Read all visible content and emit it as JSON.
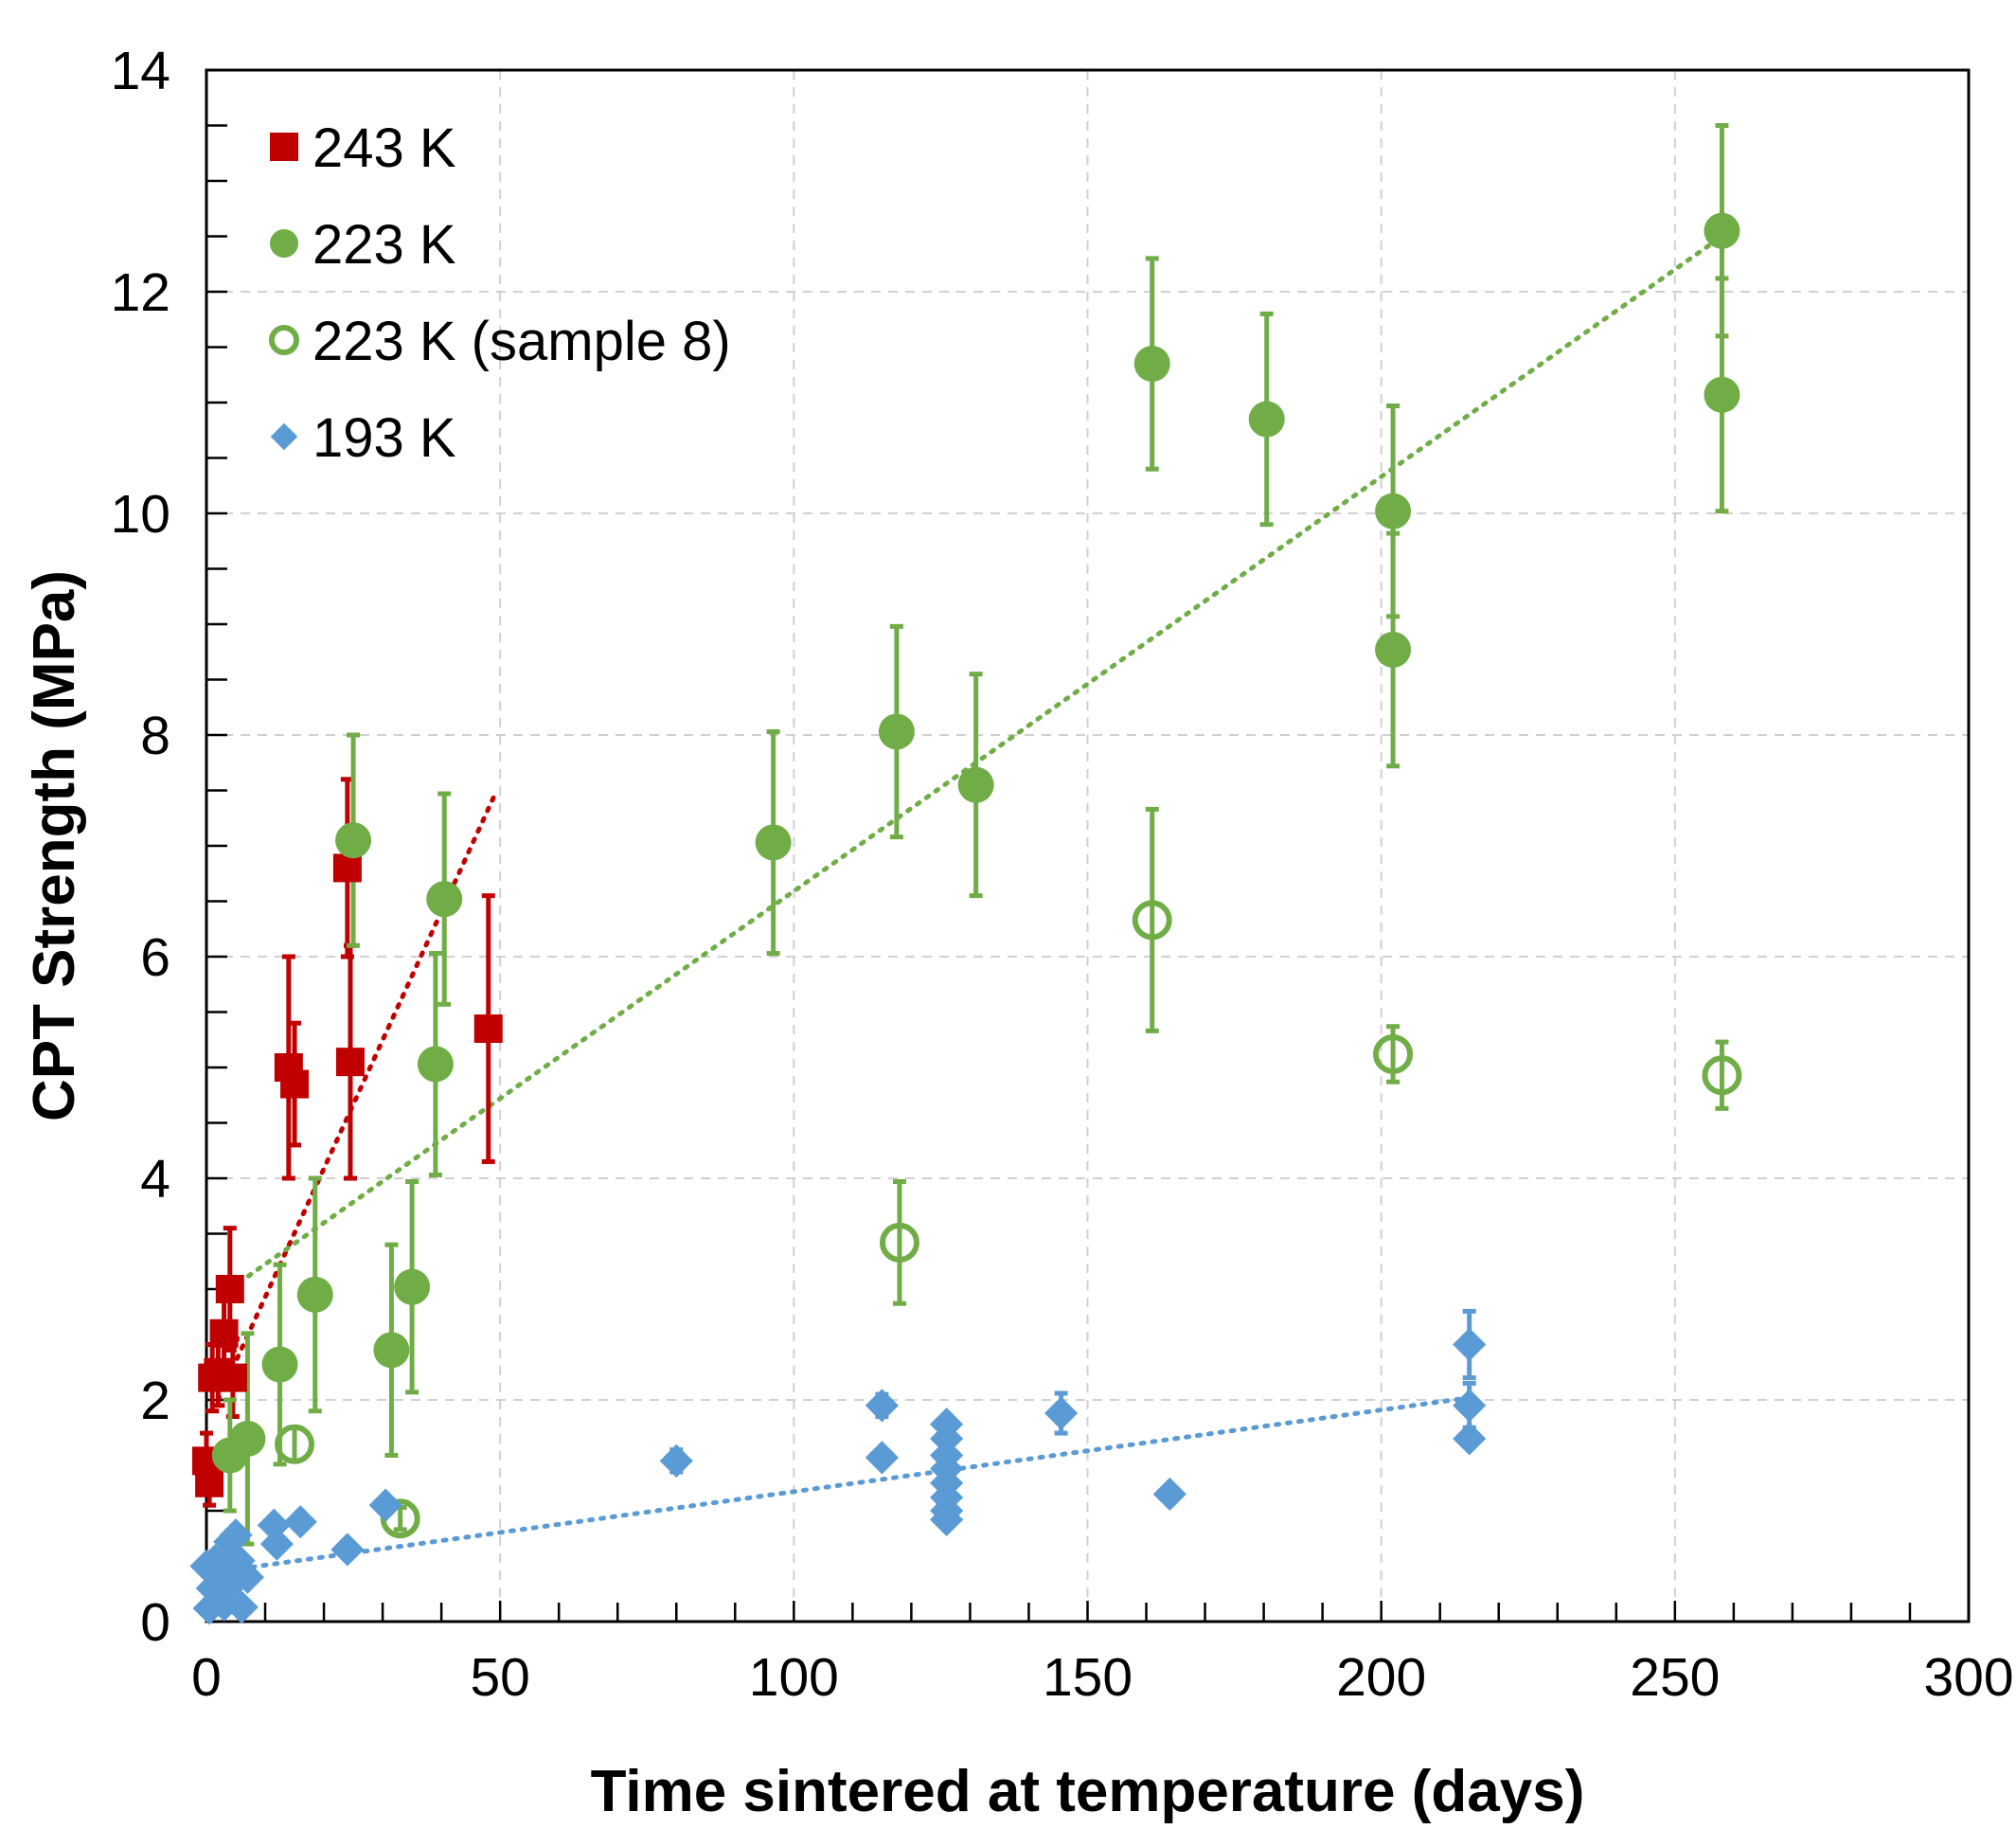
{
  "chart_data": {
    "type": "scatter",
    "xlabel": "Time sintered at temperature (days)",
    "ylabel": "CPT Strength (MPa)",
    "xlim": [
      0,
      300
    ],
    "ylim": [
      0,
      14
    ],
    "x_ticks": [
      "0",
      "50",
      "100",
      "150",
      "200",
      "250",
      "300"
    ],
    "y_ticks": [
      "0",
      "2",
      "4",
      "6",
      "8",
      "10",
      "12",
      "14"
    ],
    "grid": "dashed",
    "legend_position": "top-left",
    "series": [
      {
        "name": "243 K",
        "color": "#C00000",
        "marker": "square",
        "trendline": {
          "style": "dotted",
          "from": [
            2,
            2.0
          ],
          "to": [
            49,
            7.45
          ]
        },
        "points": [
          {
            "x": 0,
            "y": 1.45,
            "err": 0.25
          },
          {
            "x": 0.5,
            "y": 1.25,
            "err": 0.2
          },
          {
            "x": 1,
            "y": 2.2,
            "err": 0.3
          },
          {
            "x": 2,
            "y": 2.25,
            "err": 0.3
          },
          {
            "x": 3,
            "y": 2.6,
            "err": 0.35
          },
          {
            "x": 4,
            "y": 3.0,
            "err": 0.55
          },
          {
            "x": 4.5,
            "y": 2.2,
            "err": 0.35
          },
          {
            "x": 14,
            "y": 5.0,
            "err": 1.0
          },
          {
            "x": 15,
            "y": 4.85,
            "err": 0.55
          },
          {
            "x": 24,
            "y": 6.8,
            "err": 0.8
          },
          {
            "x": 24.5,
            "y": 5.05,
            "err": 1.05
          },
          {
            "x": 48,
            "y": 5.35,
            "err": 1.2
          }
        ]
      },
      {
        "name": "223 K",
        "color": "#70AD47",
        "marker": "circle",
        "trendline": {
          "style": "dotted",
          "from": [
            4,
            3.0
          ],
          "to": [
            258,
            12.5
          ]
        },
        "points": [
          {
            "x": 4,
            "y": 1.5,
            "err": 0.5
          },
          {
            "x": 7,
            "y": 1.65,
            "err": 0.95
          },
          {
            "x": 12.5,
            "y": 2.32,
            "err": 0.9
          },
          {
            "x": 18.5,
            "y": 2.95,
            "err": 1.05
          },
          {
            "x": 25,
            "y": 7.05,
            "err": 0.95
          },
          {
            "x": 31.5,
            "y": 2.45,
            "err": 0.95
          },
          {
            "x": 35,
            "y": 3.02,
            "err": 0.95
          },
          {
            "x": 39,
            "y": 5.03,
            "err": 1.0
          },
          {
            "x": 40.5,
            "y": 6.52,
            "err": 0.95
          },
          {
            "x": 96.5,
            "y": 7.03,
            "err": 1.0
          },
          {
            "x": 117.5,
            "y": 8.03,
            "err": 0.95
          },
          {
            "x": 131,
            "y": 7.55,
            "err": 1.0
          },
          {
            "x": 161,
            "y": 11.35,
            "err": 0.95
          },
          {
            "x": 180.5,
            "y": 10.85,
            "err": 0.95
          },
          {
            "x": 202,
            "y": 10.02,
            "err": 0.95
          },
          {
            "x": 202,
            "y": 8.77,
            "err": 1.05
          },
          {
            "x": 258,
            "y": 12.55,
            "err": 0.95
          },
          {
            "x": 258,
            "y": 11.07,
            "err": 1.05
          }
        ]
      },
      {
        "name": "223 K (sample 8)",
        "color": "#70AD47",
        "marker": "open-circle",
        "points": [
          {
            "x": 15,
            "y": 1.6,
            "err": 0.15
          },
          {
            "x": 33,
            "y": 0.93,
            "err": 0.1
          },
          {
            "x": 118,
            "y": 3.42,
            "err": 0.55
          },
          {
            "x": 161,
            "y": 6.33,
            "err": 1.0
          },
          {
            "x": 202,
            "y": 5.12,
            "err": 0.25
          },
          {
            "x": 258,
            "y": 4.93,
            "err": 0.3
          }
        ]
      },
      {
        "name": "193 K",
        "color": "#5B9BD5",
        "marker": "diamond",
        "trendline": {
          "style": "dotted",
          "from": [
            2,
            0.45
          ],
          "to": [
            215,
            2.02
          ]
        },
        "points": [
          {
            "x": 0,
            "y": 0.5,
            "err": 0
          },
          {
            "x": 0.5,
            "y": 0.12,
            "err": 0
          },
          {
            "x": 1,
            "y": 0.3,
            "err": 0
          },
          {
            "x": 1.5,
            "y": 0.55,
            "err": 0
          },
          {
            "x": 2,
            "y": 0.25,
            "err": 0
          },
          {
            "x": 2.5,
            "y": 0.4,
            "err": 0
          },
          {
            "x": 3,
            "y": 0.15,
            "err": 0
          },
          {
            "x": 3.5,
            "y": 0.6,
            "err": 0
          },
          {
            "x": 4,
            "y": 0.72,
            "err": 0
          },
          {
            "x": 4.5,
            "y": 0.35,
            "err": 0
          },
          {
            "x": 5,
            "y": 0.78,
            "err": 0
          },
          {
            "x": 5.5,
            "y": 0.55,
            "err": 0
          },
          {
            "x": 6,
            "y": 0.13,
            "err": 0
          },
          {
            "x": 7,
            "y": 0.4,
            "err": 0
          },
          {
            "x": 11.5,
            "y": 0.87,
            "err": 0
          },
          {
            "x": 12,
            "y": 0.7,
            "err": 0
          },
          {
            "x": 16,
            "y": 0.9,
            "err": 0
          },
          {
            "x": 24,
            "y": 0.65,
            "err": 0
          },
          {
            "x": 30.5,
            "y": 1.05,
            "err": 0
          },
          {
            "x": 80,
            "y": 1.45,
            "err": 0.1
          },
          {
            "x": 115,
            "y": 1.95,
            "err": 0.1
          },
          {
            "x": 115,
            "y": 1.48,
            "err": 0
          },
          {
            "x": 126,
            "y": 1.78,
            "err": 0.05
          },
          {
            "x": 126,
            "y": 1.65,
            "err": 0
          },
          {
            "x": 126,
            "y": 1.5,
            "err": 0
          },
          {
            "x": 126,
            "y": 1.38,
            "err": 0
          },
          {
            "x": 126,
            "y": 1.25,
            "err": 0
          },
          {
            "x": 126,
            "y": 1.12,
            "err": 0
          },
          {
            "x": 126,
            "y": 1.0,
            "err": 0
          },
          {
            "x": 126,
            "y": 0.92,
            "err": 0
          },
          {
            "x": 145.5,
            "y": 1.88,
            "err": 0.18
          },
          {
            "x": 164,
            "y": 1.15,
            "err": 0
          },
          {
            "x": 215,
            "y": 2.5,
            "err": 0.3
          },
          {
            "x": 215,
            "y": 1.95,
            "err": 0.2
          },
          {
            "x": 215,
            "y": 1.65,
            "err": 0
          }
        ]
      }
    ]
  }
}
